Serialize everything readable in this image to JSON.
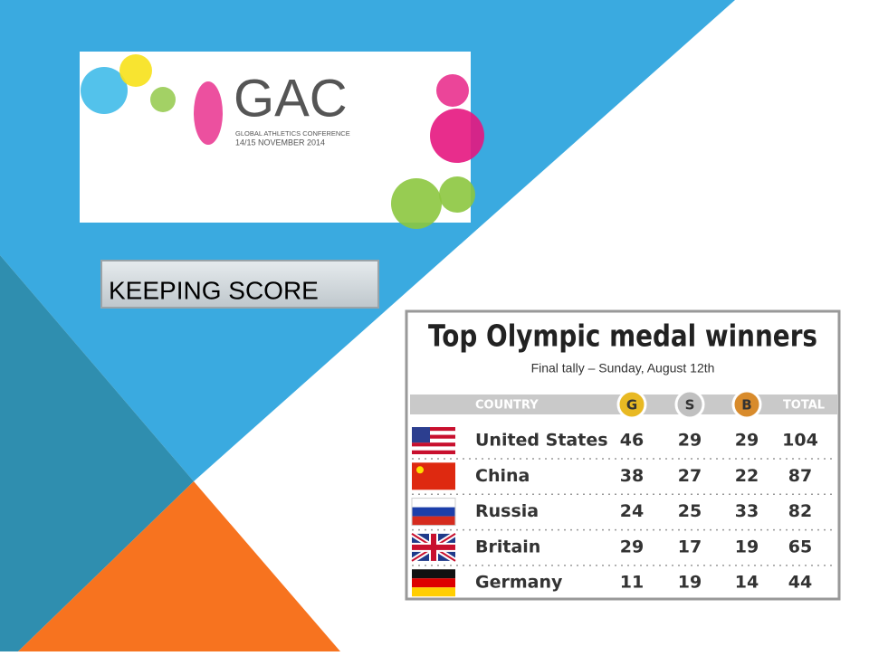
{
  "logo": {
    "title": "GAC",
    "subtitle": "GLOBAL ATHLETICS CONFERENCE",
    "dates": "14/15 NOVEMBER 2014"
  },
  "button": "KEEPING SCORE",
  "table": {
    "title": "Top Olympic medal winners",
    "subtitle": "Final tally – Sunday, August 12th",
    "header": [
      "COUNTRY",
      "G",
      "S",
      "B",
      "TOTAL"
    ],
    "rows": [
      [
        "United States",
        46,
        29,
        29,
        104
      ],
      [
        "China",
        38,
        27,
        22,
        87
      ],
      [
        "Russia",
        24,
        25,
        33,
        82
      ],
      [
        "Britain",
        29,
        17,
        19,
        65
      ],
      [
        "Germany",
        11,
        19,
        14,
        44
      ]
    ]
  }
}
